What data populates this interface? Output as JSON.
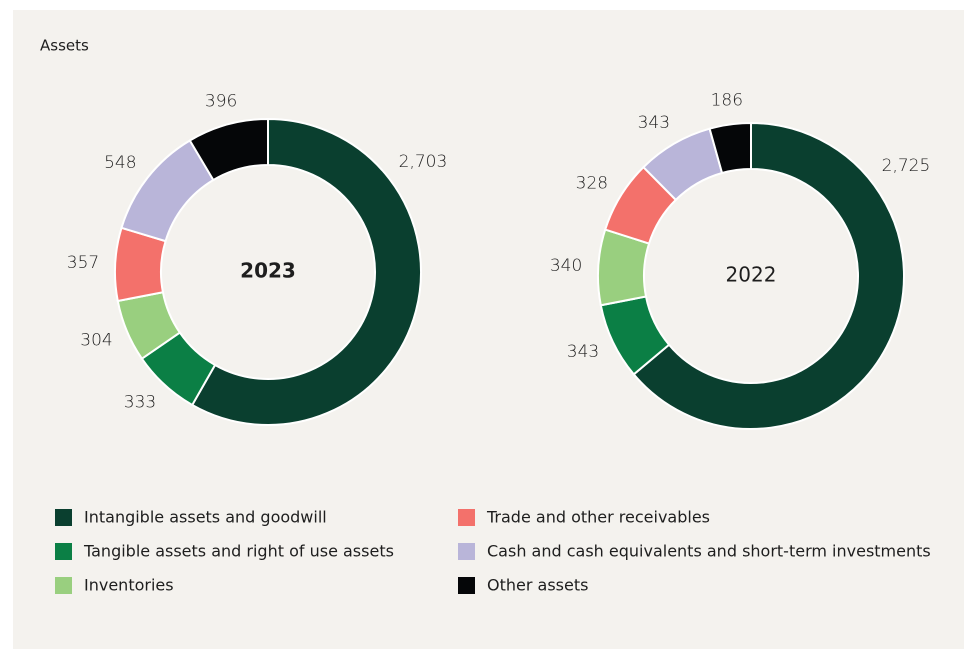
{
  "title": "Assets",
  "legend": [
    {
      "name": "Intangible assets and goodwill",
      "color": "#0a3f2f"
    },
    {
      "name": "Tangible assets and right of use assets",
      "color": "#0b7f45"
    },
    {
      "name": "Inventories",
      "color": "#99cf7f"
    },
    {
      "name": "Trade and other receivables",
      "color": "#f3716b"
    },
    {
      "name": "Cash and cash equivalents and short-term investments",
      "color": "#b9b5d9"
    },
    {
      "name": "Other assets",
      "color": "#050608"
    }
  ],
  "chart_data": [
    {
      "type": "pie",
      "title": "2023",
      "title_weight": "bold",
      "values": [
        2703,
        333,
        304,
        357,
        548,
        396
      ],
      "value_labels": [
        "2,703",
        "333",
        "304",
        "357",
        "548",
        "396"
      ]
    },
    {
      "type": "pie",
      "title": "2022",
      "title_weight": "normal",
      "values": [
        2725,
        343,
        340,
        328,
        343,
        186
      ],
      "value_labels": [
        "2,725",
        "343",
        "340",
        "328",
        "343",
        "186"
      ]
    }
  ]
}
